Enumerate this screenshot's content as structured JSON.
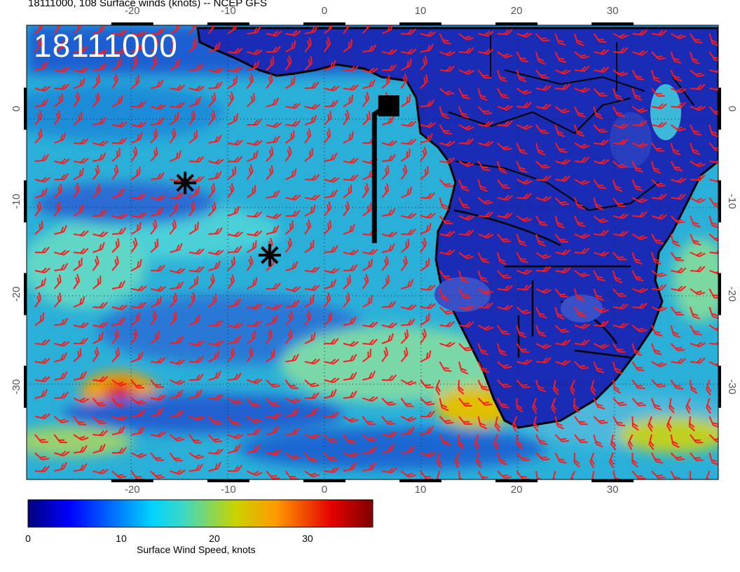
{
  "title": "18111000, 108 Surface winds (knots) -- NCEP GFS",
  "stamp": "18111000",
  "colorbar": {
    "label": "Surface Wind Speed, knots",
    "ticks": [
      "0",
      "10",
      "20",
      "30"
    ],
    "range": [
      0,
      37
    ],
    "colormap": "jet"
  },
  "axes": {
    "lon_ticks": [
      "-20",
      "-10",
      "0",
      "10",
      "20",
      "30"
    ],
    "lat_ticks": [
      "0",
      "-10",
      "-20",
      "-30"
    ],
    "lon_range": [
      -31,
      41
    ],
    "lat_range": [
      -40,
      9
    ]
  },
  "markers": [
    {
      "type": "asterisk",
      "lon": -14.5,
      "lat": -8.0
    },
    {
      "type": "asterisk",
      "lon": -5.7,
      "lat": -15.8
    },
    {
      "type": "square",
      "lon": 6.7,
      "lat": 0.3
    },
    {
      "type": "track-line",
      "points": [
        [
          6.2,
          0.1
        ],
        [
          5.2,
          -0.6
        ],
        [
          5.2,
          -14.5
        ]
      ]
    }
  ],
  "colors": {
    "barbs": "#ff1a1a",
    "coast": "#000000",
    "land_base": "#1428b4",
    "ocean_base": "#28b4d8",
    "stamp_text": "#ffffff"
  }
}
